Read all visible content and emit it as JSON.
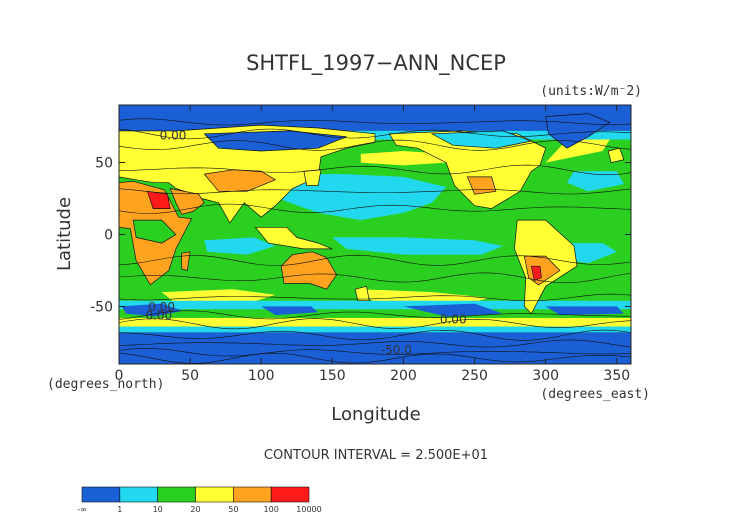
{
  "chart_data": {
    "type": "heatmap",
    "title": "SHTFL_1997−ANN_NCEP",
    "units_label": "(units:W/m⁻2)",
    "xlabel": "Longitude",
    "ylabel": "Latitude",
    "x_unit_label": "(degrees_east)",
    "y_unit_label": "(degrees_north)",
    "xlim": [
      0,
      360
    ],
    "ylim": [
      -90,
      90
    ],
    "x_ticks": [
      0,
      50,
      100,
      150,
      200,
      250,
      300,
      350
    ],
    "y_ticks": [
      50,
      0,
      -50
    ],
    "contour_interval_text": "CONTOUR INTERVAL = 2.500E+01",
    "contour_labels": [
      {
        "text": "0.00",
        "lon": 38,
        "lat": 66
      },
      {
        "text": "0.00",
        "lon": 30,
        "lat": -53
      },
      {
        "text": "0.00",
        "lon": 28,
        "lat": -59
      },
      {
        "text": "0.00",
        "lon": 235,
        "lat": -62
      },
      {
        "text": "-50.0",
        "lon": 195,
        "lat": -83
      }
    ],
    "colorbar": {
      "bins": [
        {
          "color": "#1a5fd6"
        },
        {
          "color": "#22d8ef"
        },
        {
          "color": "#28cf1e"
        },
        {
          "color": "#ffff33"
        },
        {
          "color": "#ffa31f"
        },
        {
          "color": "#ff1a1a"
        }
      ],
      "tick_labels": [
        "-∞",
        "1",
        "10",
        "20",
        "50",
        "100",
        "10000"
      ]
    }
  }
}
